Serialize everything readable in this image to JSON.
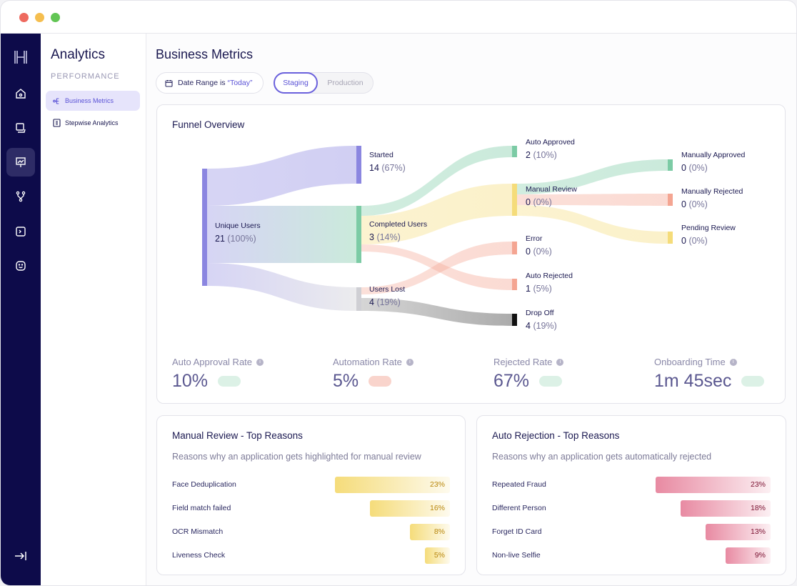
{
  "window": {
    "dots": [
      "#ee6a5f",
      "#f5be4f",
      "#62c554"
    ]
  },
  "rail": {
    "items": [
      {
        "icon": "logo-h-icon"
      },
      {
        "icon": "home-icon"
      },
      {
        "icon": "documents-icon"
      },
      {
        "icon": "presentation-chart-icon",
        "active": true
      },
      {
        "icon": "workflow-icon"
      },
      {
        "icon": "terminal-icon"
      },
      {
        "icon": "smiley-icon"
      },
      {
        "icon": "collapse-arrow-icon"
      }
    ]
  },
  "subnav": {
    "title": "Analytics",
    "section": "PERFORMANCE",
    "items": [
      {
        "label": "Business Metrics",
        "icon": "flow-icon",
        "active": true
      },
      {
        "label": "Stepwise Analytics",
        "icon": "list-doc-icon"
      }
    ]
  },
  "page": {
    "title": "Business Metrics",
    "date_filter": {
      "prefix": "Date Range is ",
      "value": "“Today”"
    },
    "env_toggle": {
      "options": [
        "Staging",
        "Production"
      ],
      "selected": "Staging"
    }
  },
  "funnel": {
    "title": "Funnel Overview",
    "nodes": [
      {
        "id": "unique",
        "label": "Unique Users",
        "value": "21",
        "pct": "(100%)",
        "color": "#8b86e0"
      },
      {
        "id": "started",
        "label": "Started",
        "value": "14",
        "pct": "(67%)",
        "color": "#8b86e0"
      },
      {
        "id": "completed",
        "label": "Completed Users",
        "value": "3",
        "pct": "(14%)",
        "color": "#7ccba5"
      },
      {
        "id": "lost",
        "label": "Users Lost",
        "value": "4",
        "pct": "(19%)",
        "color": "#cfcfd4"
      },
      {
        "id": "autoapproved",
        "label": "Auto Approved",
        "value": "2",
        "pct": "(10%)",
        "color": "#7ccba5"
      },
      {
        "id": "manual",
        "label": "Manual Review",
        "value": "0",
        "pct": "(0%)",
        "color": "#f5dc7a"
      },
      {
        "id": "error",
        "label": "Error",
        "value": "0",
        "pct": "(0%)",
        "color": "#f4a592"
      },
      {
        "id": "autorejected",
        "label": "Auto Rejected",
        "value": "1",
        "pct": " (5%)",
        "color": "#f4a592"
      },
      {
        "id": "dropoff",
        "label": "Drop Off",
        "value": "4",
        "pct": "(19%)",
        "color": "#111111"
      },
      {
        "id": "manapproved",
        "label": "Manually Approved",
        "value": "0",
        "pct": "(0%)",
        "color": "#7ccba5"
      },
      {
        "id": "manrejected",
        "label": "Manually Rejected",
        "value": "0",
        "pct": "(0%)",
        "color": "#f4a592"
      },
      {
        "id": "pending",
        "label": "Pending Review",
        "value": "0",
        "pct": "(0%)",
        "color": "#f5dc7a"
      }
    ],
    "links": [
      [
        "unique",
        "started"
      ],
      [
        "unique",
        "completed"
      ],
      [
        "unique",
        "lost"
      ],
      [
        "completed",
        "autoapproved"
      ],
      [
        "completed",
        "manual"
      ],
      [
        "completed",
        "autorejected"
      ],
      [
        "lost",
        "error"
      ],
      [
        "lost",
        "dropoff"
      ],
      [
        "manual",
        "manapproved"
      ],
      [
        "manual",
        "manrejected"
      ],
      [
        "manual",
        "pending"
      ]
    ],
    "metrics": [
      {
        "label": "Auto Approval Rate",
        "value": "10%",
        "chip": "#dcf1e6"
      },
      {
        "label": "Automation Rate",
        "value": "5%",
        "chip": "#f9d4cc"
      },
      {
        "label": "Rejected Rate",
        "value": "67%",
        "chip": "#dcf1e6"
      },
      {
        "label": "Onboarding Time",
        "value": "1m 45sec",
        "chip": "#dcf1e6"
      }
    ]
  },
  "manual_review": {
    "title": "Manual Review - Top Reasons",
    "subtitle": "Reasons why an application gets highlighted for manual review",
    "color": "#f5dc7a",
    "text_color": "#b8860b",
    "rows": [
      {
        "label": "Face Deduplication",
        "value": 23,
        "text": "23%"
      },
      {
        "label": "Field match failed",
        "value": 16,
        "text": "16%"
      },
      {
        "label": "OCR Mismatch",
        "value": 8,
        "text": "8%"
      },
      {
        "label": "Liveness Check",
        "value": 5,
        "text": "5%"
      }
    ]
  },
  "auto_rejection": {
    "title": "Auto Rejection - Top Reasons",
    "subtitle": "Reasons why an application gets automatically rejected",
    "color": "#e88aa2",
    "text_color": "#7a1030",
    "rows": [
      {
        "label": "Repeated Fraud",
        "value": 23,
        "text": "23%"
      },
      {
        "label": "Different Person",
        "value": 18,
        "text": "18%"
      },
      {
        "label": "Forget ID Card",
        "value": 13,
        "text": "13%"
      },
      {
        "label": "Non-live Selfie",
        "value": 9,
        "text": "9%"
      }
    ]
  }
}
